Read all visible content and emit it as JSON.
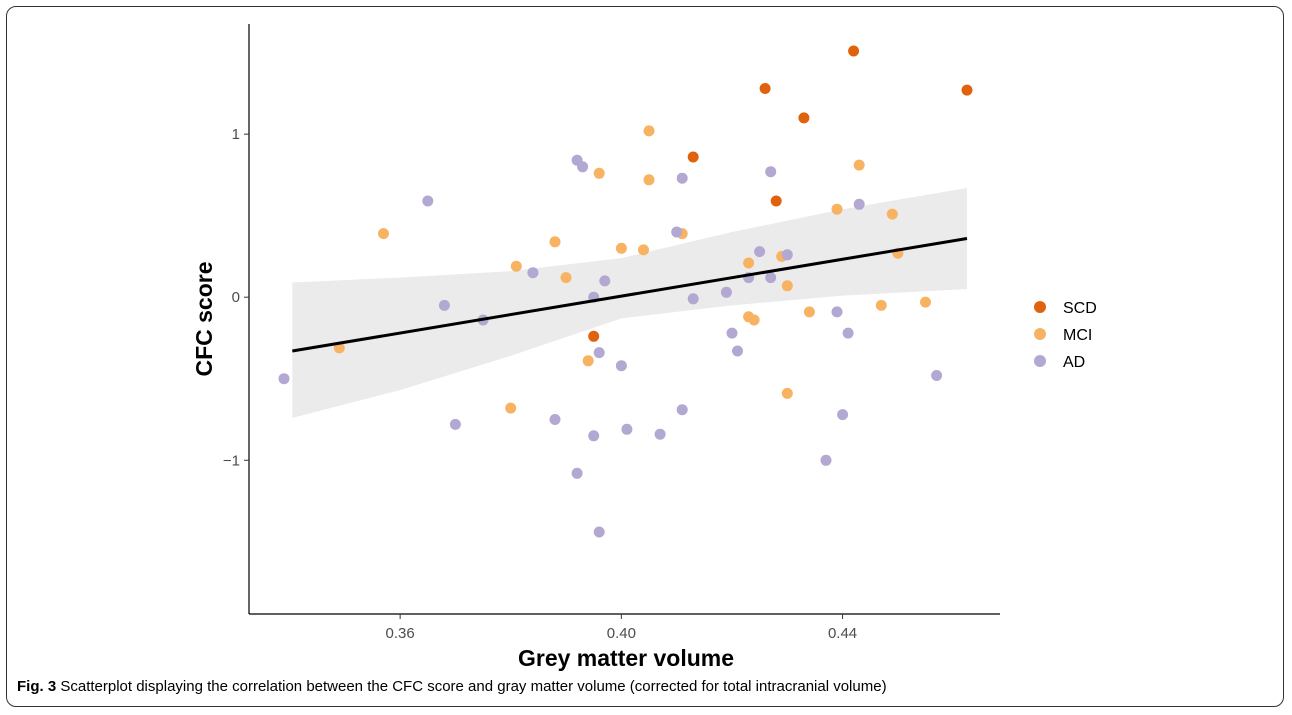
{
  "caption": {
    "label": "Fig. 3",
    "text": "Scatterplot displaying the correlation between the CFC score and gray matter volume (corrected for total intracranial volume)"
  },
  "chart_data": {
    "type": "scatter",
    "xlabel": "Grey matter volume",
    "ylabel": "CFC score",
    "xlim": [
      0.339,
      0.4625
    ],
    "ylim": [
      -1.98,
      1.7
    ],
    "x_ticks": [
      0.36,
      0.4,
      0.44
    ],
    "x_tick_labels": [
      "0.36",
      "0.40",
      "0.44"
    ],
    "y_ticks": [
      -1,
      0,
      1
    ],
    "y_tick_labels": [
      "−1",
      "0",
      "1"
    ],
    "grid": false,
    "legend_position": "right",
    "series": [
      {
        "name": "SCD",
        "color": "#e0620d",
        "points": [
          [
            0.442,
            1.51
          ],
          [
            0.426,
            1.28
          ],
          [
            0.4625,
            1.27
          ],
          [
            0.433,
            1.1
          ],
          [
            0.413,
            0.86
          ],
          [
            0.428,
            0.59
          ],
          [
            0.395,
            -0.24
          ]
        ]
      },
      {
        "name": "MCI",
        "color": "#f7b362",
        "points": [
          [
            0.405,
            1.02
          ],
          [
            0.443,
            0.81
          ],
          [
            0.396,
            0.76
          ],
          [
            0.405,
            0.72
          ],
          [
            0.439,
            0.54
          ],
          [
            0.449,
            0.51
          ],
          [
            0.357,
            0.39
          ],
          [
            0.411,
            0.39
          ],
          [
            0.388,
            0.34
          ],
          [
            0.4,
            0.3
          ],
          [
            0.404,
            0.29
          ],
          [
            0.45,
            0.27
          ],
          [
            0.429,
            0.25
          ],
          [
            0.423,
            0.21
          ],
          [
            0.381,
            0.19
          ],
          [
            0.39,
            0.12
          ],
          [
            0.43,
            0.07
          ],
          [
            0.455,
            -0.03
          ],
          [
            0.447,
            -0.05
          ],
          [
            0.434,
            -0.09
          ],
          [
            0.423,
            -0.12
          ],
          [
            0.424,
            -0.14
          ],
          [
            0.349,
            -0.31
          ],
          [
            0.394,
            -0.39
          ],
          [
            0.43,
            -0.59
          ],
          [
            0.38,
            -0.68
          ]
        ]
      },
      {
        "name": "AD",
        "color": "#b2a8d1",
        "points": [
          [
            0.392,
            0.84
          ],
          [
            0.393,
            0.8
          ],
          [
            0.427,
            0.77
          ],
          [
            0.411,
            0.73
          ],
          [
            0.365,
            0.59
          ],
          [
            0.443,
            0.57
          ],
          [
            0.41,
            0.4
          ],
          [
            0.425,
            0.28
          ],
          [
            0.43,
            0.26
          ],
          [
            0.384,
            0.15
          ],
          [
            0.423,
            0.12
          ],
          [
            0.427,
            0.12
          ],
          [
            0.397,
            0.1
          ],
          [
            0.419,
            0.03
          ],
          [
            0.395,
            0.0
          ],
          [
            0.413,
            -0.01
          ],
          [
            0.368,
            -0.05
          ],
          [
            0.439,
            -0.09
          ],
          [
            0.375,
            -0.14
          ],
          [
            0.42,
            -0.22
          ],
          [
            0.441,
            -0.22
          ],
          [
            0.421,
            -0.33
          ],
          [
            0.396,
            -0.34
          ],
          [
            0.4,
            -0.42
          ],
          [
            0.457,
            -0.48
          ],
          [
            0.339,
            -0.5
          ],
          [
            0.411,
            -0.69
          ],
          [
            0.44,
            -0.72
          ],
          [
            0.388,
            -0.75
          ],
          [
            0.37,
            -0.78
          ],
          [
            0.401,
            -0.81
          ],
          [
            0.407,
            -0.84
          ],
          [
            0.395,
            -0.85
          ],
          [
            0.437,
            -1.0
          ],
          [
            0.392,
            -1.08
          ],
          [
            0.396,
            -1.44
          ]
        ]
      }
    ],
    "fit_line": {
      "color": "#000000",
      "x": [
        0.3405,
        0.4625
      ],
      "y": [
        -0.33,
        0.36
      ],
      "ci_upper": [
        [
          0.3405,
          0.09
        ],
        [
          0.36,
          0.12
        ],
        [
          0.38,
          0.16
        ],
        [
          0.4,
          0.24
        ],
        [
          0.42,
          0.4
        ],
        [
          0.44,
          0.54
        ],
        [
          0.4625,
          0.67
        ]
      ],
      "ci_lower": [
        [
          0.3405,
          -0.74
        ],
        [
          0.36,
          -0.57
        ],
        [
          0.38,
          -0.36
        ],
        [
          0.4,
          -0.13
        ],
        [
          0.42,
          -0.05
        ],
        [
          0.44,
          0.01
        ],
        [
          0.4625,
          0.05
        ]
      ]
    },
    "ci_band_color": "#ebebeb"
  }
}
